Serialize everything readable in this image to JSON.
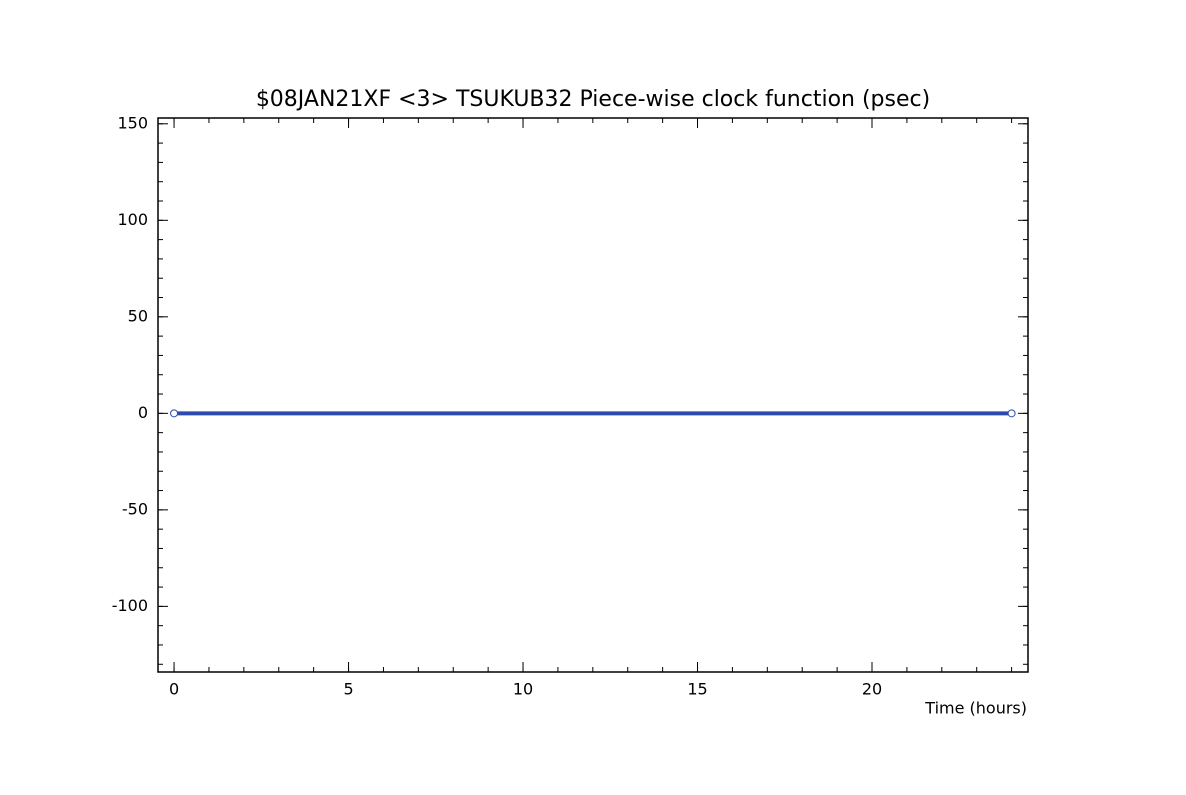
{
  "chart_data": {
    "type": "line",
    "title": "$08JAN21XF <3>  TSUKUB32  Piece-wise clock function (psec)",
    "x_label": "Time (hours)",
    "x": [
      0,
      24
    ],
    "series": [
      {
        "color": "#2d4aad",
        "values": [
          0,
          0
        ]
      }
    ],
    "xlim": [
      -0.46,
      24.47
    ],
    "xticks": [
      0,
      5,
      10,
      15,
      20
    ],
    "xminor": 1,
    "ylim": [
      -134,
      153
    ],
    "yticks": [
      -100,
      -50,
      0,
      50,
      100,
      150
    ],
    "yminor": 10,
    "grid": false
  }
}
